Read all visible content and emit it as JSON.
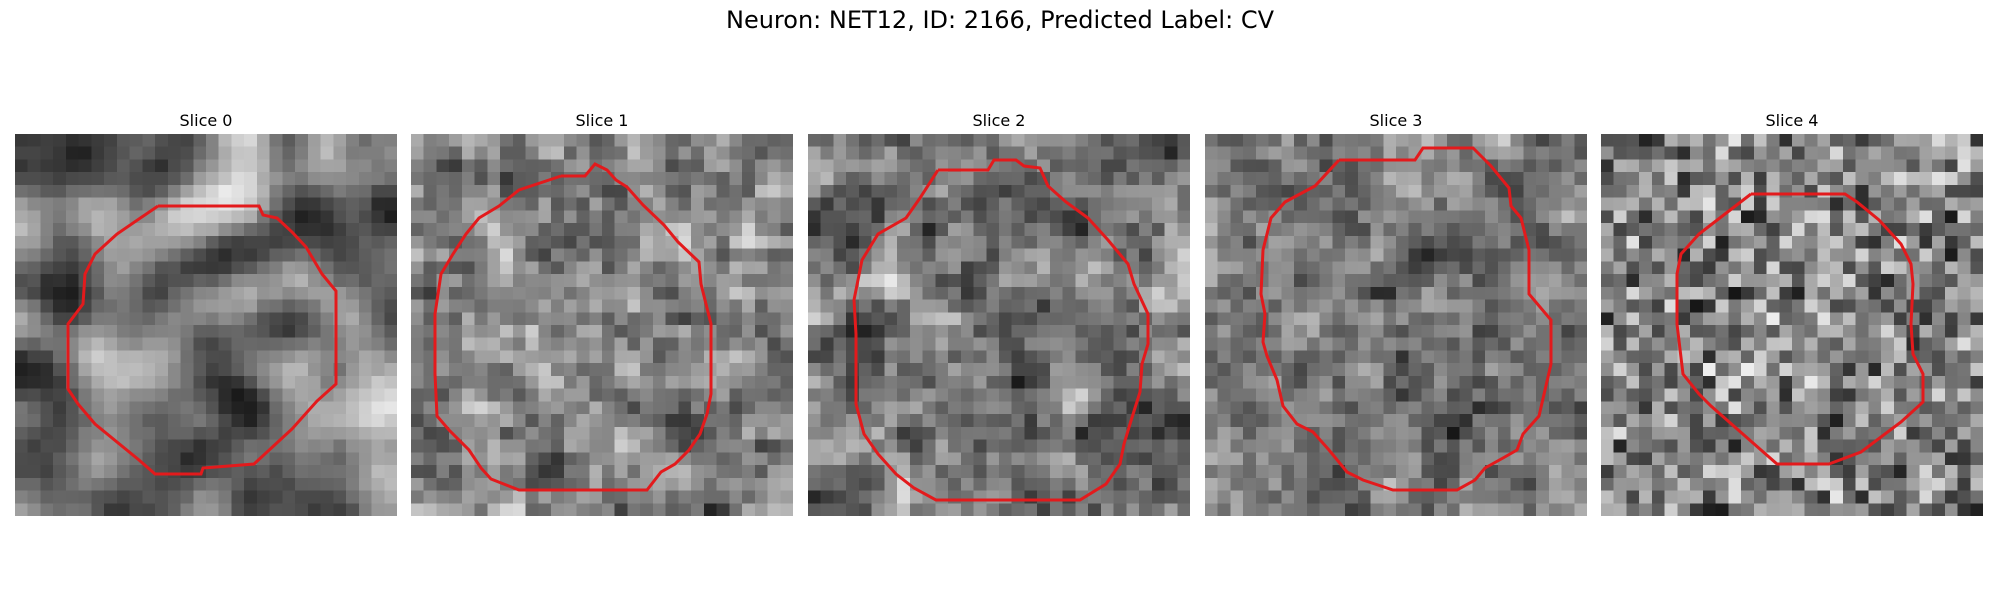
{
  "figure": {
    "title": "Neuron: NET12, ID: 2166, Predicted Label: CV",
    "contour_color": "#e31a1c"
  },
  "panels": [
    {
      "title": "Slice 0",
      "texture": "smooth"
    },
    {
      "title": "Slice 1",
      "texture": "medium"
    },
    {
      "title": "Slice 2",
      "texture": "medium"
    },
    {
      "title": "Slice 3",
      "texture": "medium"
    },
    {
      "title": "Slice 4",
      "texture": "noisy"
    }
  ]
}
